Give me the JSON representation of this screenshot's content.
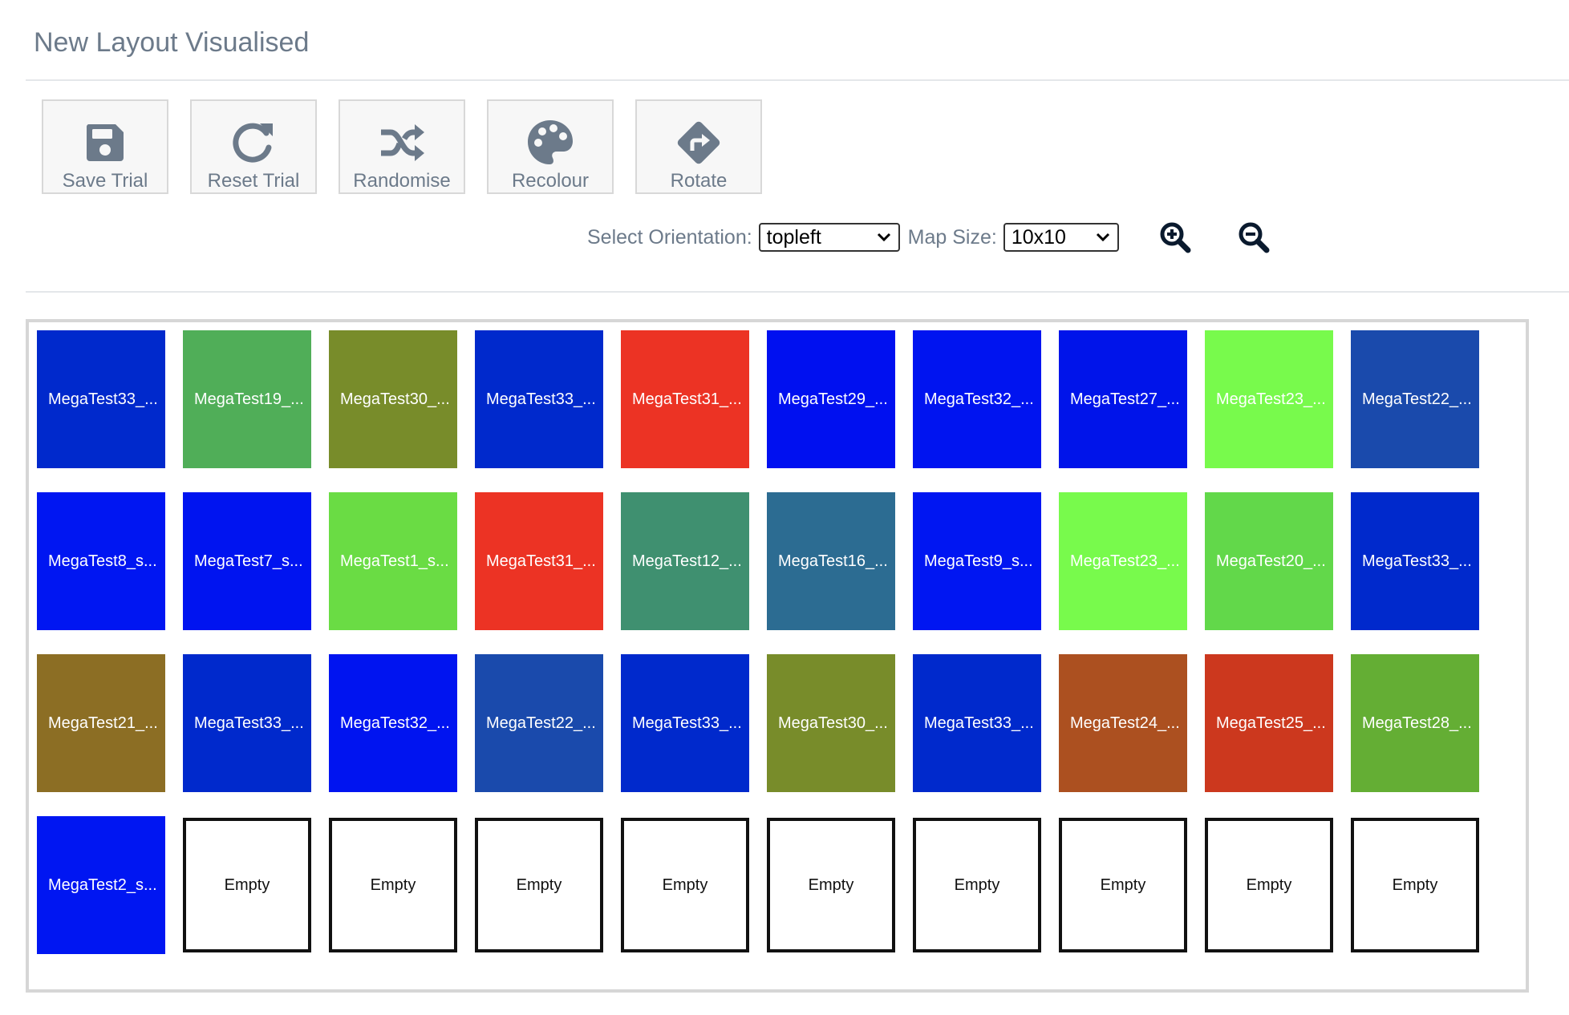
{
  "page": {
    "title": "New Layout Visualised"
  },
  "toolbar": {
    "buttons": [
      {
        "label": "Save Trial",
        "icon": "floppy-disk-icon"
      },
      {
        "label": "Reset Trial",
        "icon": "redo-arrow-icon"
      },
      {
        "label": "Randomise",
        "icon": "shuffle-icon"
      },
      {
        "label": "Recolour",
        "icon": "palette-icon"
      },
      {
        "label": "Rotate",
        "icon": "diamond-turn-right-icon"
      }
    ],
    "icon_color": "#6c7a8a"
  },
  "controls": {
    "orientation_label": "Select Orientation:",
    "orientation_value": "topleft",
    "map_size_label": "Map Size:",
    "map_size_value": "10x10",
    "zoom_in_icon": "zoom-in-icon",
    "zoom_out_icon": "zoom-out-icon"
  },
  "grid": {
    "rows": [
      [
        {
          "label": "MegaTest33_...",
          "color": "#0029cc"
        },
        {
          "label": "MegaTest19_...",
          "color": "#50ae58"
        },
        {
          "label": "MegaTest30_...",
          "color": "#788c2a"
        },
        {
          "label": "MegaTest33_...",
          "color": "#0029cc"
        },
        {
          "label": "MegaTest31_...",
          "color": "#ec3324"
        },
        {
          "label": "MegaTest29_...",
          "color": "#0010f0"
        },
        {
          "label": "MegaTest32_...",
          "color": "#0014f0"
        },
        {
          "label": "MegaTest27_...",
          "color": "#0014ea"
        },
        {
          "label": "MegaTest23_...",
          "color": "#78fa4c"
        },
        {
          "label": "MegaTest22_...",
          "color": "#1a4aac"
        }
      ],
      [
        {
          "label": "MegaTest8_s...",
          "color": "#0016f2"
        },
        {
          "label": "MegaTest7_s...",
          "color": "#0014f0"
        },
        {
          "label": "MegaTest1_s...",
          "color": "#6adc44"
        },
        {
          "label": "MegaTest31_...",
          "color": "#ec3324"
        },
        {
          "label": "MegaTest12_...",
          "color": "#3f9070"
        },
        {
          "label": "MegaTest16_...",
          "color": "#2c6c92"
        },
        {
          "label": "MegaTest9_s...",
          "color": "#0016f2"
        },
        {
          "label": "MegaTest23_...",
          "color": "#78fa4c"
        },
        {
          "label": "MegaTest20_...",
          "color": "#62d84a"
        },
        {
          "label": "MegaTest33_...",
          "color": "#0029cc"
        }
      ],
      [
        {
          "label": "MegaTest21_...",
          "color": "#8c6e24"
        },
        {
          "label": "MegaTest33_...",
          "color": "#0029cc"
        },
        {
          "label": "MegaTest32_...",
          "color": "#0014f0"
        },
        {
          "label": "MegaTest22_...",
          "color": "#1a4aac"
        },
        {
          "label": "MegaTest33_...",
          "color": "#0029cc"
        },
        {
          "label": "MegaTest30_...",
          "color": "#788c2a"
        },
        {
          "label": "MegaTest33_...",
          "color": "#0029cc"
        },
        {
          "label": "MegaTest24_...",
          "color": "#ac5020"
        },
        {
          "label": "MegaTest25_...",
          "color": "#cc381e"
        },
        {
          "label": "MegaTest28_...",
          "color": "#64ae34"
        }
      ],
      [
        {
          "label": "MegaTest2_s...",
          "color": "#0016f2"
        },
        {
          "label": "Empty",
          "color": "#ffffff",
          "empty": true
        },
        {
          "label": "Empty",
          "color": "#ffffff",
          "empty": true
        },
        {
          "label": "Empty",
          "color": "#ffffff",
          "empty": true
        },
        {
          "label": "Empty",
          "color": "#ffffff",
          "empty": true
        },
        {
          "label": "Empty",
          "color": "#ffffff",
          "empty": true
        },
        {
          "label": "Empty",
          "color": "#ffffff",
          "empty": true
        },
        {
          "label": "Empty",
          "color": "#ffffff",
          "empty": true
        },
        {
          "label": "Empty",
          "color": "#ffffff",
          "empty": true
        },
        {
          "label": "Empty",
          "color": "#ffffff",
          "empty": true
        }
      ]
    ]
  }
}
